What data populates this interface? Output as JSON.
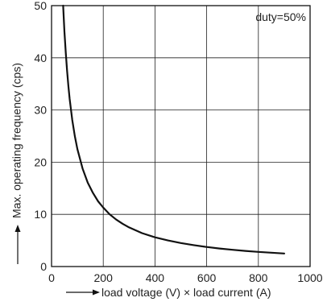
{
  "chart_data": {
    "type": "line",
    "title": "",
    "xlabel": "load voltage (V) × load current (A)",
    "ylabel": "Max. operating frequency (cps)",
    "xlim": [
      0,
      1000
    ],
    "ylim": [
      0,
      50
    ],
    "x_ticks": [
      "0",
      "200",
      "400",
      "600",
      "800",
      "1000"
    ],
    "y_ticks": [
      "0",
      "10",
      "20",
      "30",
      "40",
      "50"
    ],
    "grid": true,
    "annotation": "duty=50%",
    "series": [
      {
        "x": [
          45,
          50,
          55,
          60,
          65,
          70,
          80,
          90,
          100,
          120,
          140,
          160,
          180,
          200,
          225,
          250,
          275,
          300,
          350,
          400,
          450,
          500,
          550,
          600,
          650,
          700,
          750,
          800,
          850,
          900
        ],
        "y": [
          50,
          45,
          40.9,
          37.5,
          34.6,
          32.1,
          28.1,
          25,
          22.5,
          18.8,
          16.1,
          14.1,
          12.5,
          11.3,
          10,
          9,
          8.2,
          7.5,
          6.4,
          5.6,
          5,
          4.5,
          4.1,
          3.75,
          3.46,
          3.21,
          3,
          2.81,
          2.65,
          2.5
        ]
      }
    ],
    "colors": {
      "line": "#111111",
      "grid": "#222222",
      "frame": "#111111"
    }
  }
}
